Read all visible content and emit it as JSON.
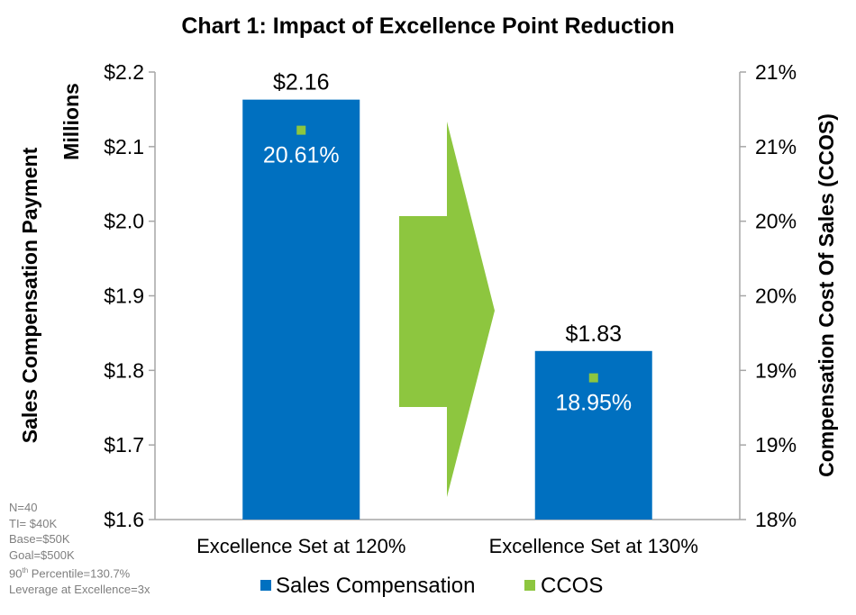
{
  "chart_data": {
    "type": "bar",
    "title": "Chart 1: Impact of Excellence Point Reduction",
    "categories": [
      "Excellence Set at 120%",
      "Excellence Set at 130%"
    ],
    "series": [
      {
        "name": "Sales Compensation",
        "axis": "left",
        "values": [
          2.163,
          1.826
        ],
        "value_labels": [
          "$2.16",
          "$1.83"
        ],
        "color": "#0070c0"
      },
      {
        "name": "CCOS",
        "axis": "right",
        "type": "marker",
        "values": [
          20.61,
          18.95
        ],
        "value_labels": [
          "20.61%",
          "18.95%"
        ],
        "color": "#8dc63f"
      }
    ],
    "ylabel": "Sales Compensation Payment",
    "ylabel_units": "Millions",
    "y2label": "Compensation Cost Of Sales (CCOS)",
    "ylim": [
      1.6,
      2.2
    ],
    "yticks": [
      1.6,
      1.7,
      1.8,
      1.9,
      2.0,
      2.1,
      2.2
    ],
    "ytick_labels": [
      "$1.6",
      "$1.7",
      "$1.8",
      "$1.9",
      "$2.0",
      "$2.1",
      "$2.2"
    ],
    "y2lim": [
      18.0,
      21.0
    ],
    "y2ticks": [
      18.0,
      18.5,
      19.0,
      19.5,
      20.0,
      20.5,
      21.0
    ],
    "y2tick_labels": [
      "18%",
      "19%",
      "19%",
      "20%",
      "20%",
      "21%",
      "21%"
    ],
    "grid": false,
    "legend_position": "bottom",
    "annotation": {
      "type": "arrow",
      "direction": "right",
      "color": "#8dc63f"
    }
  },
  "notes": [
    {
      "text": "N=40"
    },
    {
      "text": "TI= $40K"
    },
    {
      "text": "Base=$50K"
    },
    {
      "text": "Goal=$500K"
    },
    {
      "base": "90",
      "sup": "th",
      "rest": " Percentile=130.7%"
    },
    {
      "text": "Leverage at Excellence=3x"
    }
  ]
}
